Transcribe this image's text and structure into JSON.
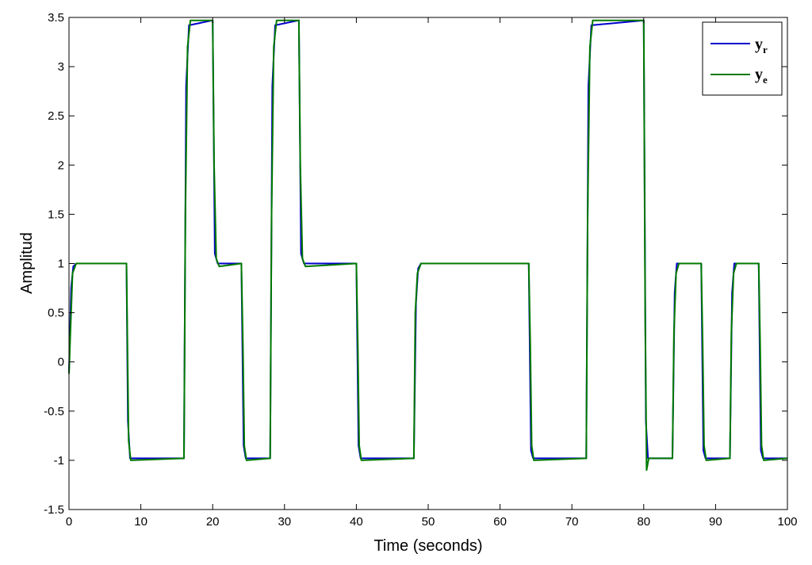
{
  "chart_data": {
    "type": "line",
    "title": "",
    "xlabel": "Time (seconds)",
    "ylabel": "Amplitud",
    "xlim": [
      0,
      100
    ],
    "ylim": [
      -1.5,
      3.5
    ],
    "xticks": [
      0,
      10,
      20,
      30,
      40,
      50,
      60,
      70,
      80,
      90,
      100
    ],
    "yticks": [
      -1.5,
      -1,
      -0.5,
      0,
      0.5,
      1,
      1.5,
      2,
      2.5,
      3,
      3.5
    ],
    "xtick_labels": [
      "0",
      "10",
      "20",
      "30",
      "40",
      "50",
      "60",
      "70",
      "80",
      "90",
      "100"
    ],
    "ytick_labels": [
      "-1.5",
      "-1",
      "-0.5",
      "0",
      "0.5",
      "1",
      "1.5",
      "2",
      "2.5",
      "3",
      "3.5"
    ],
    "grid": false,
    "legend_position": "top-right",
    "series": [
      {
        "name": "y",
        "name_sub": "r",
        "color": "#0000cc",
        "x": [
          0,
          0.3,
          0.6,
          1.0,
          8.0,
          8.2,
          8.5,
          16.0,
          16.3,
          16.7,
          20.0,
          20.3,
          20.7,
          24.0,
          24.3,
          24.6,
          28.0,
          28.3,
          28.7,
          32.0,
          32.3,
          32.7,
          40.0,
          40.3,
          40.6,
          48.0,
          48.3,
          48.6,
          49.0,
          64.0,
          64.3,
          64.6,
          72.0,
          72.3,
          72.7,
          80.0,
          80.3,
          80.6,
          84.0,
          84.3,
          84.6,
          88.0,
          88.3,
          88.6,
          92.0,
          92.3,
          92.6,
          96.0,
          96.3,
          96.6,
          100.0
        ],
        "y": [
          -0.1,
          0.75,
          0.97,
          1.0,
          1.0,
          -0.6,
          -0.98,
          -0.98,
          2.8,
          3.42,
          3.47,
          1.1,
          1.0,
          1.0,
          -0.85,
          -0.98,
          -0.98,
          2.8,
          3.42,
          3.47,
          1.1,
          1.0,
          1.0,
          -0.85,
          -0.98,
          -0.98,
          0.6,
          0.95,
          1.0,
          1.0,
          -0.9,
          -0.98,
          -0.98,
          2.8,
          3.42,
          3.47,
          -0.6,
          -0.98,
          -0.98,
          0.7,
          1.0,
          1.0,
          -0.9,
          -0.98,
          -0.98,
          0.7,
          1.0,
          1.0,
          -0.9,
          -0.98,
          -0.98
        ]
      },
      {
        "name": "y",
        "name_sub": "e",
        "color": "#007a00",
        "x": [
          0,
          0.2,
          0.5,
          1.0,
          8.0,
          8.1,
          8.3,
          8.6,
          16.0,
          16.2,
          16.5,
          16.9,
          20.0,
          20.2,
          20.5,
          20.9,
          24.0,
          24.2,
          24.4,
          24.7,
          28.0,
          28.2,
          28.5,
          28.9,
          32.0,
          32.2,
          32.5,
          32.9,
          40.0,
          40.2,
          40.4,
          40.7,
          48.0,
          48.2,
          48.5,
          49.0,
          64.0,
          64.2,
          64.4,
          64.7,
          72.0,
          72.2,
          72.5,
          72.9,
          80.0,
          80.2,
          80.4,
          80.7,
          84.0,
          84.2,
          84.5,
          84.9,
          88.0,
          88.2,
          88.4,
          88.7,
          92.0,
          92.2,
          92.5,
          92.9,
          96.0,
          96.2,
          96.4,
          96.7,
          100.0
        ],
        "y": [
          -0.12,
          0.3,
          0.9,
          1.0,
          1.0,
          0.4,
          -0.8,
          -1.0,
          -0.98,
          1.5,
          3.2,
          3.47,
          3.47,
          2.0,
          1.05,
          0.97,
          1.0,
          0.2,
          -0.85,
          -1.0,
          -0.98,
          1.5,
          3.2,
          3.47,
          3.47,
          2.0,
          1.05,
          0.97,
          1.0,
          0.2,
          -0.85,
          -1.0,
          -0.98,
          0.5,
          0.9,
          1.0,
          1.0,
          0.2,
          -0.85,
          -1.0,
          -0.98,
          1.5,
          3.2,
          3.47,
          3.47,
          0.5,
          -1.1,
          -0.98,
          -0.98,
          0.3,
          0.9,
          1.0,
          1.0,
          0.2,
          -0.85,
          -1.0,
          -0.98,
          0.3,
          0.9,
          1.0,
          1.0,
          0.2,
          -0.85,
          -1.0,
          -0.98
        ]
      }
    ]
  }
}
